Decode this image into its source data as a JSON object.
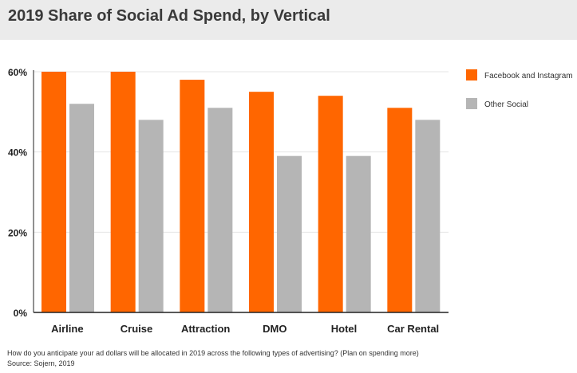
{
  "title": "2019 Share of Social Ad Spend, by Vertical",
  "footnote": {
    "question": "How do you anticipate your ad dollars will be allocated in 2019 across the following types of advertising? (Plan on spending more)",
    "source": "Source: Sojern, 2019"
  },
  "colors": {
    "facebook": "#ff6600",
    "other": "#b5b5b5",
    "grid": "#e6e6e6",
    "axis": "#222222"
  },
  "chart_data": {
    "type": "bar",
    "title": "2019 Share of Social Ad Spend, by Vertical",
    "categories": [
      "Airline",
      "Cruise",
      "Attraction",
      "DMO",
      "Hotel",
      "Car Rental"
    ],
    "series": [
      {
        "name": "Facebook and Instagram",
        "color": "#ff6600",
        "values": [
          60,
          60,
          58,
          55,
          54,
          51
        ]
      },
      {
        "name": "Other Social",
        "color": "#b5b5b5",
        "values": [
          52,
          48,
          51,
          39,
          39,
          48
        ]
      }
    ],
    "ylim": [
      0,
      60
    ],
    "yticks": [
      0,
      20,
      40,
      60
    ],
    "ytick_labels": [
      "0%",
      "20%",
      "40%",
      "60%"
    ],
    "xlabel": "",
    "ylabel": "",
    "grid": true,
    "legend_position": "right"
  }
}
